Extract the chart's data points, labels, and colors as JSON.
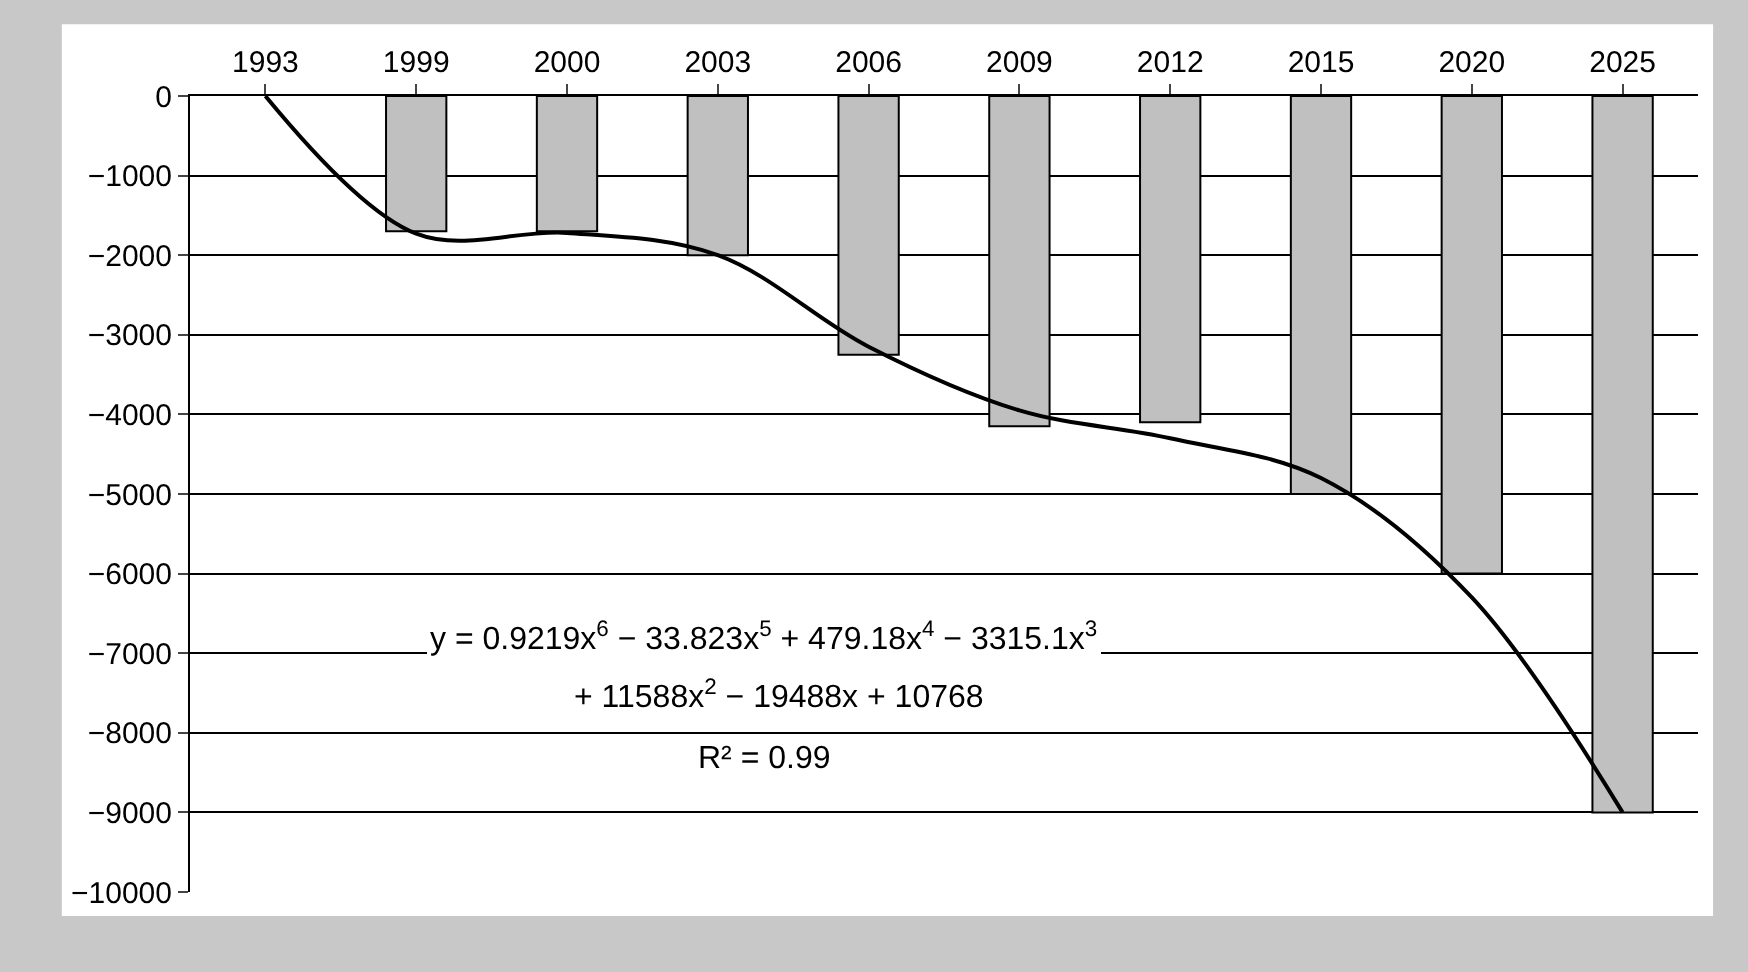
{
  "chart_data": {
    "type": "bar",
    "categories": [
      "1993",
      "1999",
      "2000",
      "2003",
      "2006",
      "2009",
      "2012",
      "2015",
      "2020",
      "2025"
    ],
    "series": [
      {
        "color": "#c0c0c0",
        "values": [
          null,
          -1700,
          -1700,
          -2000,
          -3250,
          -4150,
          -4100,
          -5000,
          -6000,
          -9000
        ]
      },
      {
        "type": "line",
        "color": "#000000",
        "values": [
          0,
          -1730,
          -1720,
          -2000,
          -3150,
          -3950,
          -4300,
          -4800,
          -6300,
          -9000
        ]
      }
    ],
    "ylim": [
      -10000,
      0
    ],
    "yticks": [
      0,
      {
        "value": -1000,
        "label": "−1000"
      },
      {
        "value": -2000,
        "label": "−2000"
      },
      {
        "value": -3000,
        "label": "−3000"
      },
      {
        "value": -4000,
        "label": "−4000"
      },
      {
        "value": -5000,
        "label": "−5000"
      },
      {
        "value": -6000,
        "label": "−6000"
      },
      {
        "value": -7000,
        "label": "−7000"
      },
      {
        "value": -8000,
        "label": "−8000"
      },
      {
        "value": -9000,
        "label": "−9000"
      },
      {
        "value": -10000,
        "label": "−10000"
      }
    ],
    "grid": "y",
    "marker": "none",
    "annotations": [
      "y = 0.9219x$^{6}$ − 33.823x$^{5}$ + 479.18x$^{4}$ − 3315.1x$^{3}$",
      "+ 11588x$^{2}$ − 19488x + 10768",
      "R² = 0.99"
    ]
  }
}
